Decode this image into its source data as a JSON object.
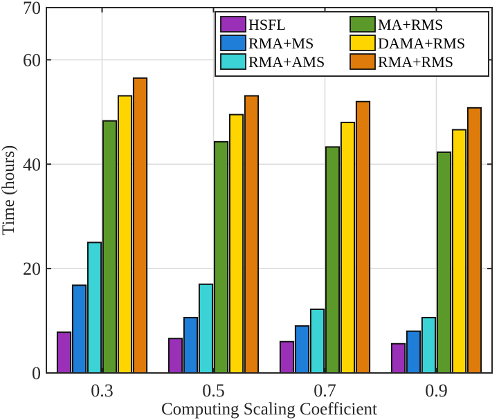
{
  "chart_data": {
    "type": "bar",
    "title": "",
    "xlabel": "Computing Scaling Coefficient",
    "ylabel": "Time (hours)",
    "ylim": [
      0,
      70
    ],
    "yticks": [
      0,
      20,
      40,
      60,
      70
    ],
    "grid": true,
    "legend_position": "top-right",
    "categories": [
      "0.3",
      "0.5",
      "0.7",
      "0.9"
    ],
    "series": [
      {
        "name": "HSFL",
        "color": "#9b30b8",
        "values": [
          7.8,
          6.6,
          6.0,
          5.6
        ]
      },
      {
        "name": "RMA+MS",
        "color": "#1f7ed8",
        "values": [
          16.8,
          10.6,
          9.0,
          8.0
        ]
      },
      {
        "name": "RMA+AMS",
        "color": "#3bd3d6",
        "values": [
          25.0,
          17.0,
          12.2,
          10.6
        ]
      },
      {
        "name": "MA+RMS",
        "color": "#5b9a2a",
        "values": [
          48.3,
          44.3,
          43.3,
          42.3
        ]
      },
      {
        "name": "DAMA+RMS",
        "color": "#ffd500",
        "values": [
          53.1,
          49.5,
          48.0,
          46.6
        ]
      },
      {
        "name": "RMA+RMS",
        "color": "#df7b0a",
        "values": [
          56.5,
          53.1,
          52.0,
          50.8
        ]
      }
    ]
  }
}
